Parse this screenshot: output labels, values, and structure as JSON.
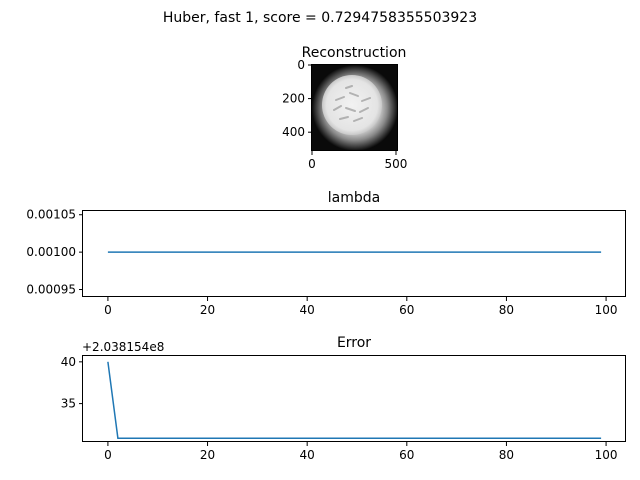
{
  "figure": {
    "suptitle": "Huber, fast 1, score = 0.7294758355503923"
  },
  "chart_data": [
    {
      "type": "image",
      "title": "Reconstruction",
      "xticks": [
        "0",
        "500"
      ],
      "yticks": [
        "0",
        "200",
        "400"
      ],
      "xlim": [
        0,
        512
      ],
      "ylim": [
        512,
        0
      ],
      "colormap": "gray"
    },
    {
      "type": "line",
      "title": "lambda",
      "xlabel": "",
      "ylabel": "",
      "xlim": [
        -5,
        104
      ],
      "ylim": [
        0.00094,
        0.001055
      ],
      "xticks": [
        "0",
        "20",
        "40",
        "60",
        "80",
        "100"
      ],
      "yticks": [
        "0.00095",
        "0.00100",
        "0.00105"
      ],
      "series": [
        {
          "color": "#1f77b4",
          "x": [
            0,
            99
          ],
          "y": [
            0.001,
            0.001
          ]
        }
      ]
    },
    {
      "type": "line",
      "title": "Error",
      "xlabel": "",
      "ylabel": "",
      "offset_text": "+2.038154e8",
      "xlim": [
        -5,
        104
      ],
      "ylim": [
        30.4,
        40.7
      ],
      "xticks": [
        "0",
        "20",
        "40",
        "60",
        "80",
        "100"
      ],
      "yticks": [
        "35",
        "40"
      ],
      "series": [
        {
          "color": "#1f77b4",
          "x": [
            0,
            2,
            99
          ],
          "y": [
            40,
            30.85,
            30.85
          ]
        }
      ]
    }
  ]
}
